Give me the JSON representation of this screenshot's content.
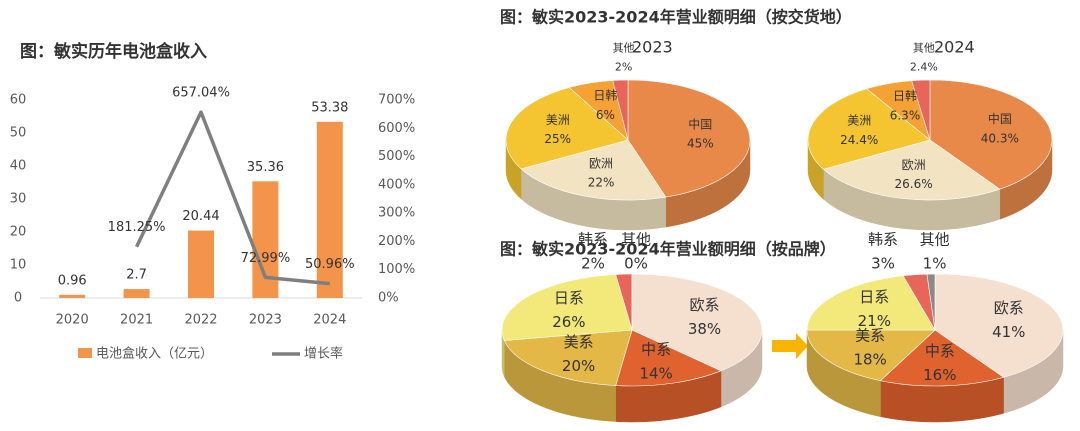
{
  "chart_data": [
    {
      "type": "combo",
      "title": "图：敏实历年电池盒收入",
      "categories": [
        "2020",
        "2021",
        "2022",
        "2023",
        "2024"
      ],
      "series": [
        {
          "name": "电池盒收入（亿元）",
          "type": "bar",
          "color": "#f4944a",
          "values": [
            0.96,
            2.7,
            20.44,
            35.36,
            53.38
          ]
        },
        {
          "name": "增长率",
          "type": "line",
          "axis": "y2",
          "color": "#7f7f7f",
          "values": [
            null,
            181.25,
            657.04,
            72.99,
            50.96
          ],
          "value_labels": [
            null,
            "181.25%",
            "657.04%",
            "72.99%",
            "50.96%"
          ]
        }
      ],
      "ylim": [
        0,
        60
      ],
      "yticks": [
        0,
        10,
        20,
        30,
        40,
        50,
        60
      ],
      "y2lim": [
        0,
        700
      ],
      "y2ticks": [
        {
          "value": 0,
          "label": "0%"
        },
        {
          "value": 100,
          "label": "100%"
        },
        {
          "value": 200,
          "label": "200%"
        },
        {
          "value": 300,
          "label": "300%"
        },
        {
          "value": 400,
          "label": "400%"
        },
        {
          "value": 500,
          "label": "500%"
        },
        {
          "value": 600,
          "label": "600%"
        },
        {
          "value": 700,
          "label": "700%"
        }
      ]
    },
    {
      "type": "pie",
      "title": "图：敏实2023-2024年营业额明细（按交货地）",
      "subtitle": "2023",
      "categories": [
        "中国",
        "欧洲",
        "美洲",
        "日韩",
        "其他"
      ],
      "values": [
        45,
        22,
        25,
        6,
        2
      ],
      "value_labels": [
        "45%",
        "22%",
        "25%",
        "6%",
        "2%"
      ],
      "colors": [
        "#e8894a",
        "#f2e3c2",
        "#f5c531",
        "#f5a133",
        "#e8655a"
      ]
    },
    {
      "type": "pie",
      "subtitle": "2024",
      "categories": [
        "中国",
        "欧洲",
        "美洲",
        "日韩",
        "其他"
      ],
      "values": [
        40.3,
        26.6,
        24.4,
        6.3,
        2.4
      ],
      "value_labels": [
        "40.3%",
        "26.6%",
        "24.4%",
        "6.3%",
        "2.4%"
      ],
      "colors": [
        "#e8894a",
        "#f2e3c2",
        "#f5c531",
        "#f5a133",
        "#e8655a"
      ]
    },
    {
      "type": "pie",
      "title": "图：敏实2023-2024年营业额明细（按品牌）",
      "categories": [
        "欧系",
        "中系",
        "美系",
        "日系",
        "韩系",
        "其他"
      ],
      "values": [
        38,
        14,
        20,
        26,
        2,
        0
      ],
      "value_labels": [
        "38%",
        "14%",
        "20%",
        "26%",
        "2%",
        "0%"
      ],
      "colors": [
        "#f5dfcf",
        "#e0622e",
        "#e3b847",
        "#f3e97a",
        "#e8655a",
        "#8a8a8a"
      ]
    },
    {
      "type": "pie",
      "categories": [
        "欧系",
        "中系",
        "美系",
        "日系",
        "韩系",
        "其他"
      ],
      "values": [
        41,
        16,
        18,
        21,
        3,
        1
      ],
      "value_labels": [
        "41%",
        "16%",
        "18%",
        "21%",
        "3%",
        "1%"
      ],
      "colors": [
        "#f5dfcf",
        "#e0622e",
        "#e3b847",
        "#f3e97a",
        "#e8655a",
        "#8a8a8a"
      ]
    }
  ]
}
